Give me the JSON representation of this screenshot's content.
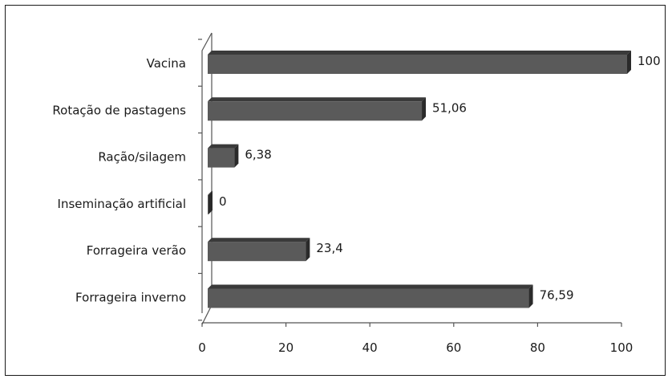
{
  "chart_data": {
    "type": "bar",
    "orientation": "horizontal",
    "style": "3d",
    "title": "",
    "xlabel": "",
    "ylabel": "",
    "categories": [
      "Vacina",
      "Rotação de pastagens",
      "Ração/silagem",
      "Inseminação artificial",
      "Forrageira verão",
      "Forrageira inverno"
    ],
    "values": [
      100,
      51.06,
      6.38,
      0,
      23.4,
      76.59
    ],
    "value_labels": [
      "100",
      "51,06",
      "6,38",
      "0",
      "23,4",
      "76,59"
    ],
    "xlim": [
      0,
      100
    ],
    "xticks": [
      "0",
      "20",
      "40",
      "60",
      "80",
      "100"
    ],
    "grid": false,
    "legend": "none",
    "colors": {
      "bar_front": "#5a5a5a",
      "bar_top": "#3a3a3a",
      "bar_side": "#2a2a2a",
      "axis": "#555555",
      "frame": "#1a1a1a",
      "text": "#1a1a1a"
    }
  }
}
